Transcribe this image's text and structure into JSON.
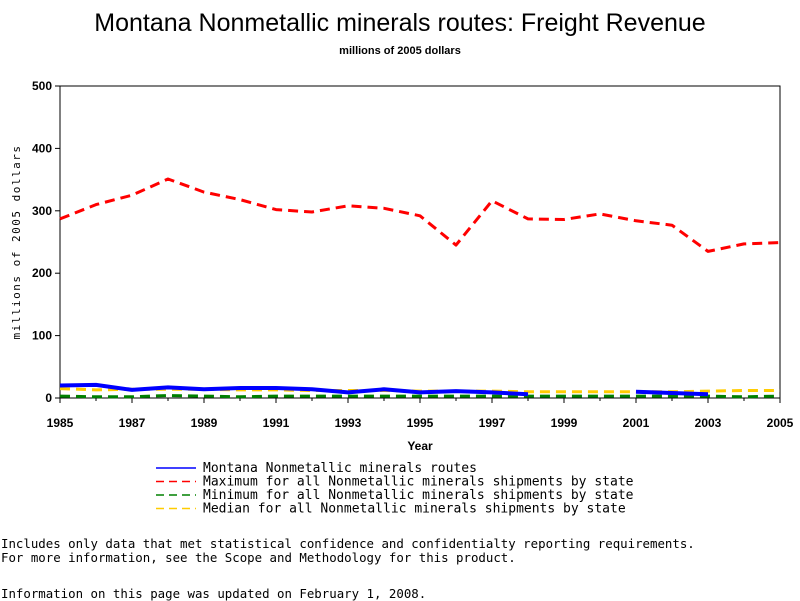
{
  "chart_data": {
    "type": "line",
    "title": "Montana Nonmetallic minerals routes: Freight Revenue",
    "subtitle": "millions of 2005 dollars",
    "xlabel": "Year",
    "ylabel": "millions of 2005 dollars",
    "xlim": [
      1985,
      2005
    ],
    "ylim": [
      0,
      500
    ],
    "x_ticks": [
      "1985",
      "1987",
      "1989",
      "1991",
      "1993",
      "1995",
      "1997",
      "1999",
      "2001",
      "2003",
      "2005"
    ],
    "y_ticks": [
      "0",
      "100",
      "200",
      "300",
      "400",
      "500"
    ],
    "x": [
      1985,
      1986,
      1987,
      1988,
      1989,
      1990,
      1991,
      1992,
      1993,
      1994,
      1995,
      1996,
      1997,
      1998,
      1999,
      2000,
      2001,
      2002,
      2003,
      2004,
      2005
    ],
    "series": [
      {
        "name": "Montana Nonmetallic minerals routes",
        "color": "#0000ff",
        "dash": "solid",
        "values": [
          20,
          21,
          13,
          17,
          14,
          16,
          16,
          14,
          9,
          14,
          9,
          11,
          9,
          6,
          null,
          null,
          10,
          8,
          6,
          null,
          null
        ]
      },
      {
        "name": "Maximum for all Nonmetallic minerals shipments by state",
        "color": "#ff0000",
        "dash": "dashed",
        "values": [
          287,
          310,
          325,
          351,
          330,
          318,
          302,
          298,
          308,
          304,
          292,
          245,
          316,
          287,
          286,
          295,
          284,
          277,
          235,
          247,
          249
        ]
      },
      {
        "name": "Minimum for all Nonmetallic minerals shipments by state",
        "color": "#008000",
        "dash": "dashed",
        "values": [
          3,
          2,
          2,
          4,
          3,
          2,
          3,
          3,
          3,
          3,
          3,
          3,
          3,
          3,
          3,
          3,
          3,
          3,
          3,
          2,
          3
        ]
      },
      {
        "name": "Median for all Nonmetallic minerals shipments by state",
        "color": "#ffcc00",
        "dash": "dashed",
        "values": [
          15,
          13,
          14,
          14,
          14,
          13,
          13,
          12,
          12,
          12,
          11,
          11,
          11,
          10,
          10,
          10,
          10,
          10,
          11,
          12,
          12
        ]
      }
    ],
    "grid": false,
    "legend_position": "bottom"
  },
  "notes": [
    "Includes only data that met statistical confidence and confidentialty reporting requirements.",
    "For more information, see the Scope and Methodology for this product."
  ],
  "updated": "Information on this page was updated on February 1, 2008."
}
